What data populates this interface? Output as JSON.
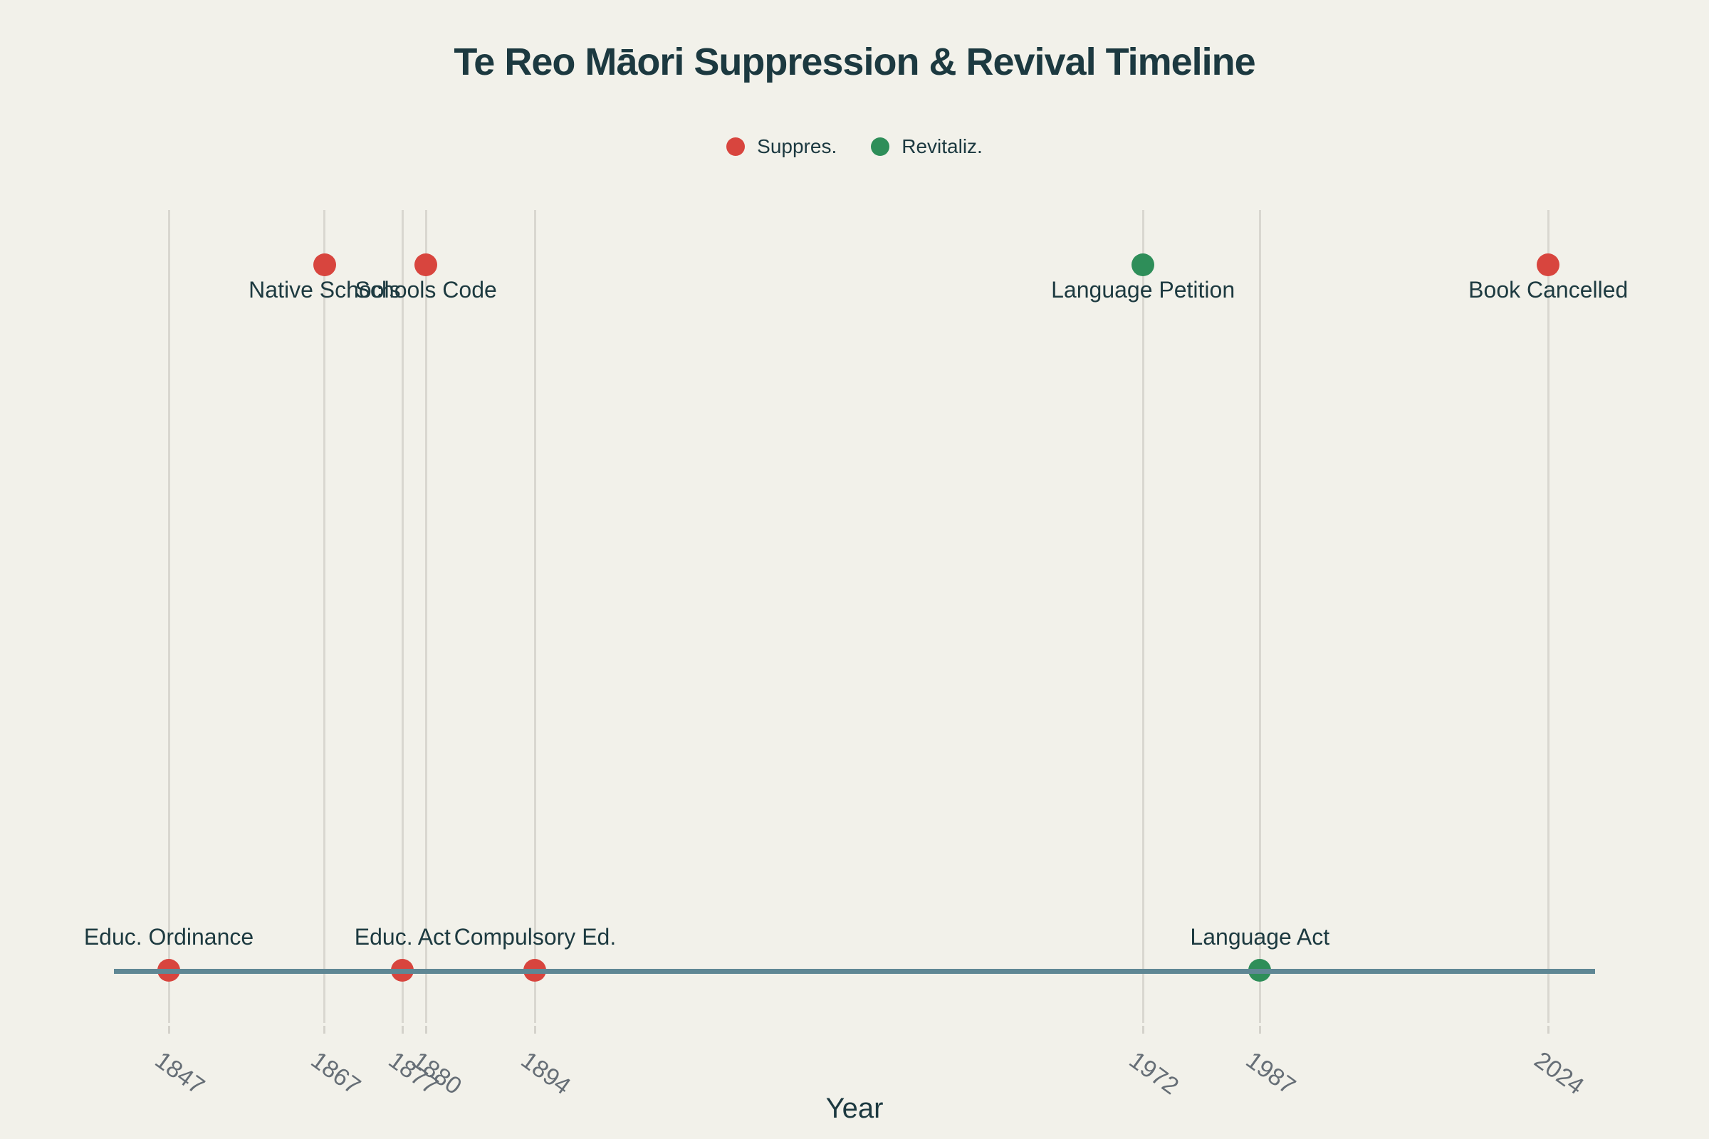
{
  "chart_data": {
    "type": "scatter",
    "title": "Te Reo Māori Suppression & Revival Timeline",
    "xlabel": "Year",
    "x_ticks": [
      1847,
      1867,
      1877,
      1880,
      1894,
      1972,
      1987,
      2024
    ],
    "xlim": [
      1840,
      2030
    ],
    "grid": "vertical-on",
    "legend_position": "top-center",
    "legend": [
      {
        "label": "Suppres.",
        "color": "#d8453e"
      },
      {
        "label": "Revitaliz.",
        "color": "#2e8e59"
      }
    ],
    "events": [
      {
        "year": 1847,
        "label": "Educ. Ordinance",
        "category": "Suppres.",
        "row": "baseline"
      },
      {
        "year": 1867,
        "label": "Native Schools",
        "category": "Suppres.",
        "row": "top"
      },
      {
        "year": 1877,
        "label": "Educ. Act",
        "category": "Suppres.",
        "row": "baseline"
      },
      {
        "year": 1880,
        "label": "Schools Code",
        "category": "Suppres.",
        "row": "top"
      },
      {
        "year": 1894,
        "label": "Compulsory Ed.",
        "category": "Suppres.",
        "row": "baseline"
      },
      {
        "year": 1972,
        "label": "Language Petition",
        "category": "Revitaliz.",
        "row": "top"
      },
      {
        "year": 1987,
        "label": "Language Act",
        "category": "Revitaliz.",
        "row": "baseline"
      },
      {
        "year": 2024,
        "label": "Book Cancelled",
        "category": "Suppres.",
        "row": "top"
      }
    ],
    "colors": {
      "suppression": "#d8453e",
      "revitalization": "#2e8e59",
      "timeline_line": "#5f8794",
      "background": "#f2f1ea",
      "gridline": "#d9d7d0",
      "text": "#1c3940",
      "tick_text": "#666e76"
    }
  }
}
